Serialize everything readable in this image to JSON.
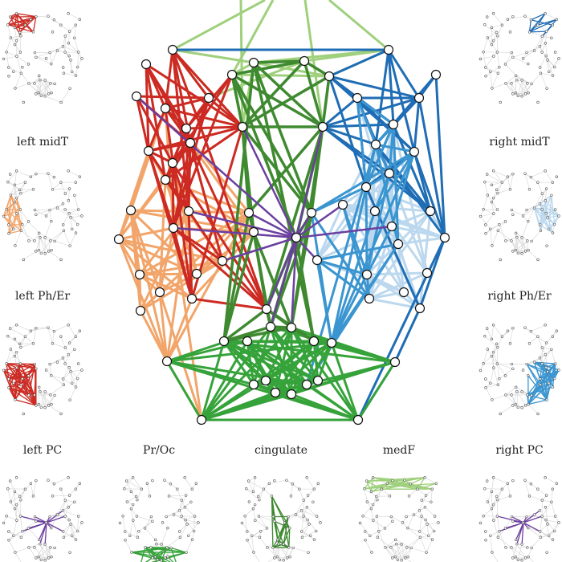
{
  "panel_labels": {
    "left_midT": "left midT",
    "right_midT": "right midT",
    "left_PhEr": "left Ph/Er",
    "right_PhEr": "right Ph/Er",
    "left_PC": "left PC",
    "PrOc": "Pr/Oc",
    "cingulate": "cingulate",
    "medF": "medF",
    "right_PC": "right PC"
  },
  "colors": {
    "left_frontal_red": "#cc2a22",
    "left_temporal_orange": "#f2a56a",
    "medial_frontal_lightgreen": "#9fd07c",
    "cingulate_darkgreen": "#3f8a30",
    "occipital_green": "#36a33a",
    "precuneus_purple": "#6b3fa0",
    "right_frontal_blue": "#1f6db5",
    "right_temporal_midblue": "#3a95d0",
    "right_lightblue": "#bcd8ee",
    "background_gray": "#d9d9d9",
    "node_fill": "#ffffff",
    "node_stroke": "#111111"
  }
}
